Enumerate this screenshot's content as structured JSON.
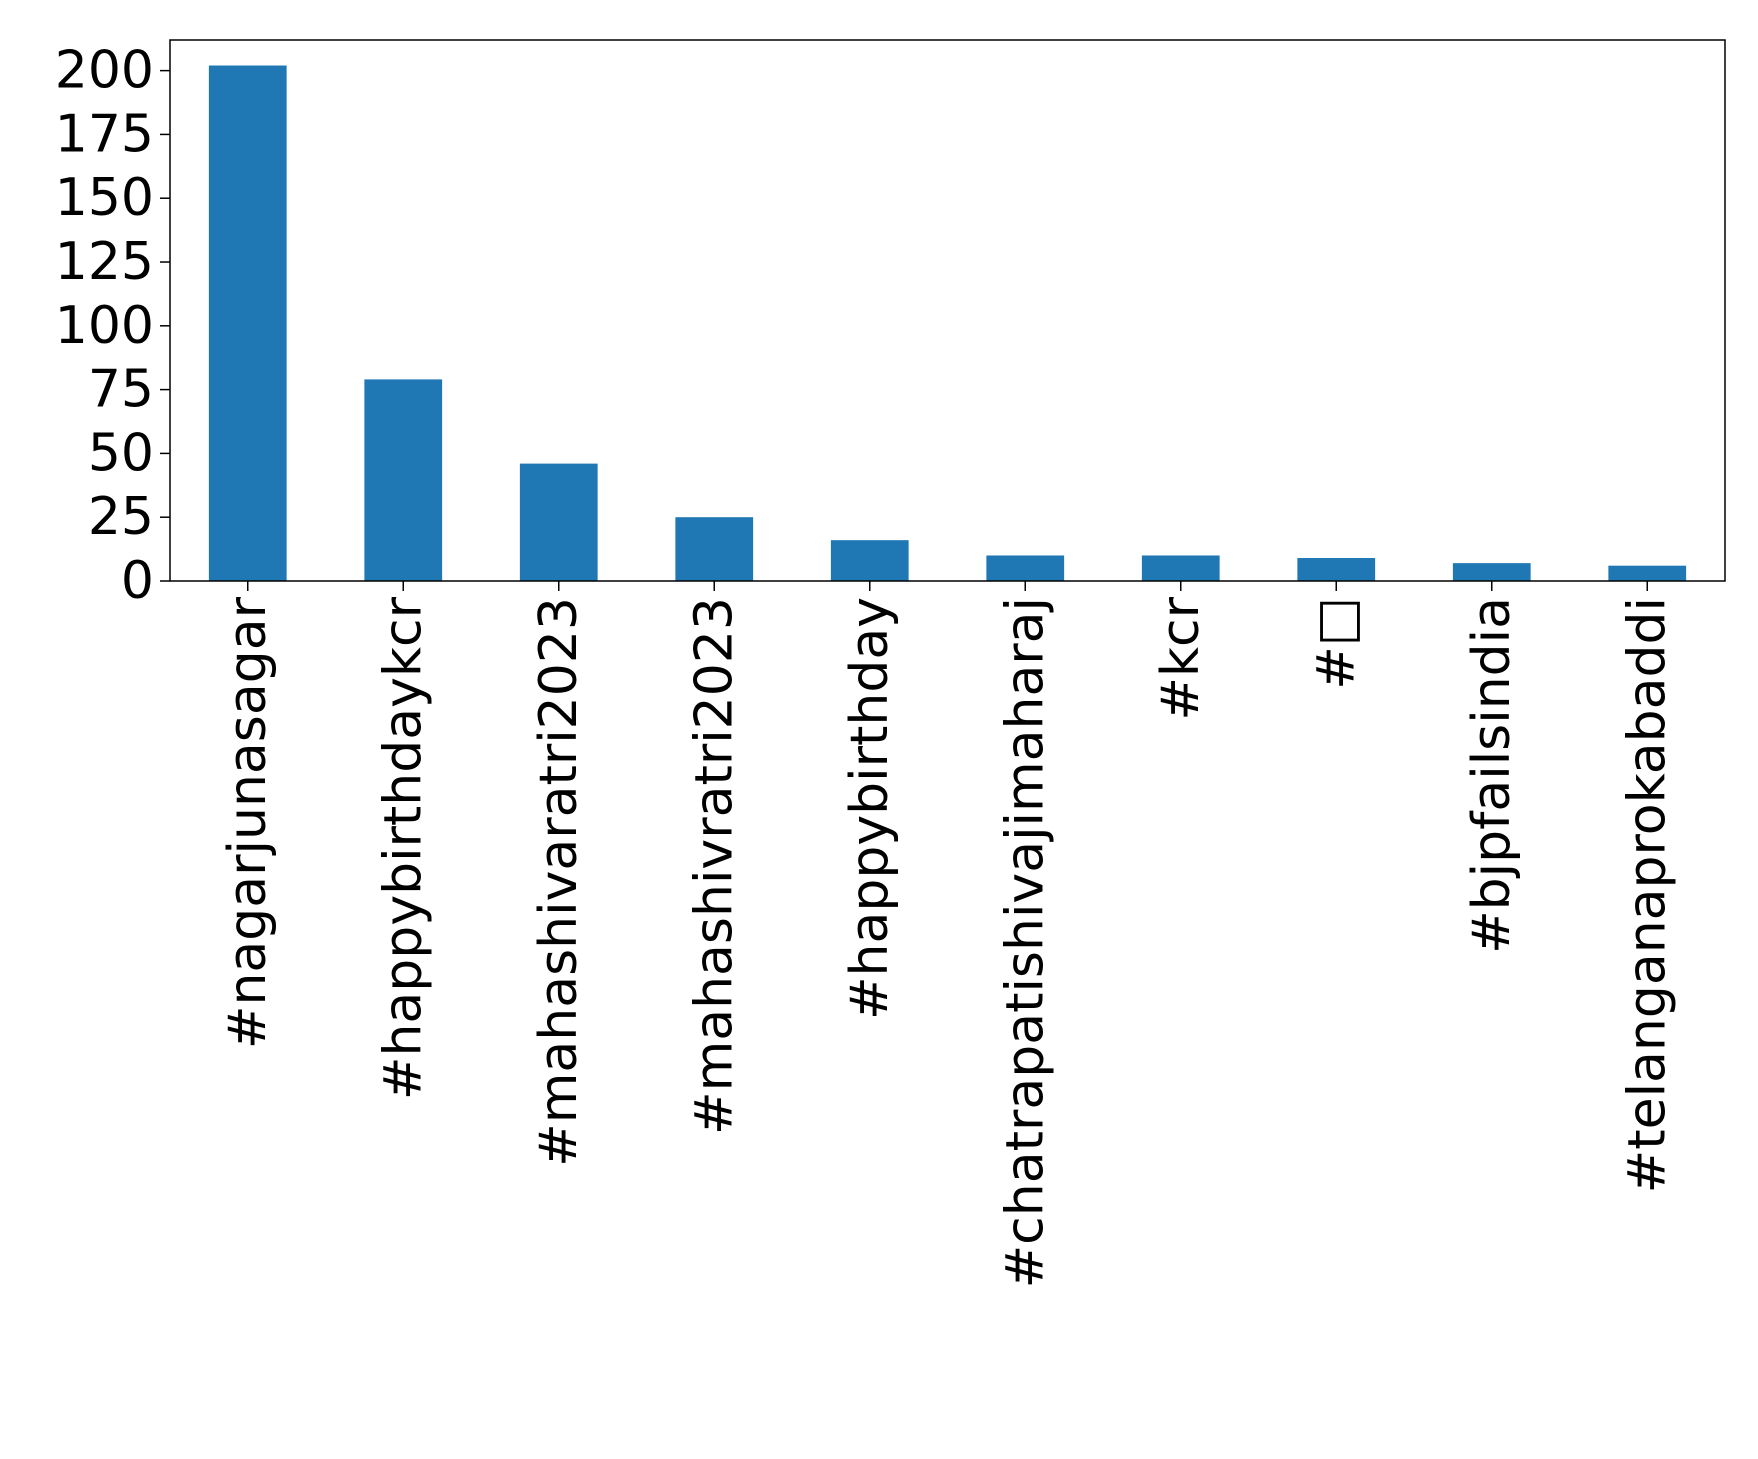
{
  "chart_data": {
    "type": "bar",
    "title": "",
    "xlabel": "",
    "ylabel": "",
    "categories": [
      "#nagarjunasagar",
      "#happybirthdaykcr",
      "#mahashivaratri2023",
      "#mahashivratri2023",
      "#happybirthday",
      "#chatrapatishivajimaharaj",
      "#kcr",
      "#□",
      "#bjpfailsindia",
      "#telanganaprokabaddi"
    ],
    "values": [
      202,
      79,
      46,
      25,
      16,
      10,
      10,
      9,
      7,
      6
    ],
    "ylim": [
      0,
      212
    ],
    "yticks": [
      0,
      25,
      50,
      75,
      100,
      125,
      150,
      175,
      200
    ],
    "grid": false,
    "legend": "none",
    "colors": {
      "bar": "#1f77b4",
      "axis": "#000000",
      "background": "#ffffff"
    }
  }
}
